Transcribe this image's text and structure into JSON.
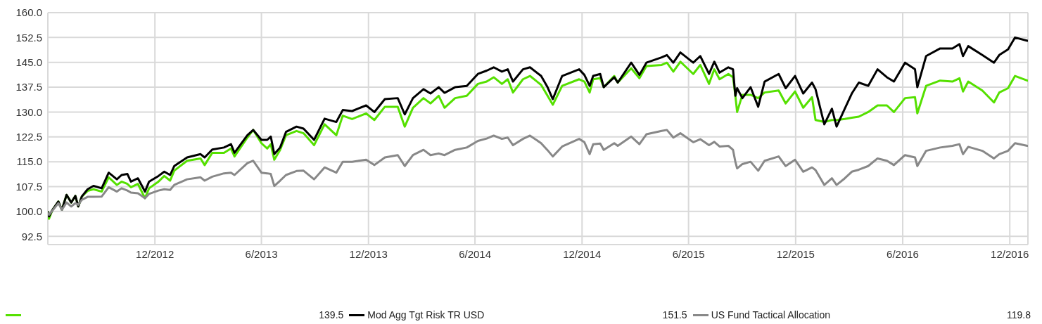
{
  "chart_data": {
    "type": "line",
    "x": [
      "2012-06-01",
      "2012-06-03",
      "2012-06-09",
      "2012-06-19",
      "2012-06-25",
      "2012-07-03",
      "2012-07-11",
      "2012-07-18",
      "2012-07-23",
      "2012-07-29",
      "2012-08-08",
      "2012-08-18",
      "2012-09-01",
      "2012-09-13",
      "2012-09-27",
      "2012-10-05",
      "2012-10-15",
      "2012-10-21",
      "2012-11-02",
      "2012-11-14",
      "2012-11-21",
      "2012-12-07",
      "2012-12-17",
      "2012-12-27",
      "2013-01-03",
      "2013-01-25",
      "2013-02-17",
      "2013-02-24",
      "2013-03-09",
      "2013-03-29",
      "2013-04-10",
      "2013-04-16",
      "2013-05-08",
      "2013-05-18",
      "2013-06-01",
      "2013-06-11",
      "2013-06-17",
      "2013-06-23",
      "2013-07-03",
      "2013-07-13",
      "2013-07-31",
      "2013-08-12",
      "2013-08-30",
      "2013-09-17",
      "2013-10-07",
      "2013-10-18",
      "2013-11-03",
      "2013-11-27",
      "2013-12-11",
      "2013-12-29",
      "2014-01-20",
      "2014-02-01",
      "2014-02-15",
      "2014-03-05",
      "2014-03-17",
      "2014-03-31",
      "2014-04-10",
      "2014-04-28",
      "2014-05-18",
      "2014-06-06",
      "2014-06-21",
      "2014-07-03",
      "2014-07-17",
      "2014-07-27",
      "2014-08-05",
      "2014-08-22",
      "2014-09-03",
      "2014-09-22",
      "2014-10-03",
      "2014-10-12",
      "2014-10-28",
      "2014-11-26",
      "2014-12-05",
      "2014-12-14",
      "2014-12-20",
      "2015-01-01",
      "2015-01-07",
      "2015-01-25",
      "2015-01-31",
      "2015-02-23",
      "2015-03-09",
      "2015-03-21",
      "2015-04-16",
      "2015-04-25",
      "2015-05-06",
      "2015-05-18",
      "2015-06-09",
      "2015-06-21",
      "2015-07-06",
      "2015-07-15",
      "2015-07-24",
      "2015-08-08",
      "2015-08-16",
      "2015-08-20",
      "2015-08-23",
      "2015-09-01",
      "2015-09-15",
      "2015-09-28",
      "2015-10-09",
      "2015-11-02",
      "2015-11-14",
      "2015-11-30",
      "2015-12-14",
      "2015-12-29",
      "2016-01-04",
      "2016-01-19",
      "2016-02-01",
      "2016-02-09",
      "2016-02-23",
      "2016-03-06",
      "2016-03-18",
      "2016-04-03",
      "2016-04-19",
      "2016-05-05",
      "2016-05-17",
      "2016-06-05",
      "2016-06-22",
      "2016-06-26",
      "2016-07-11",
      "2016-08-04",
      "2016-08-25",
      "2016-09-06",
      "2016-09-12",
      "2016-09-21",
      "2016-10-15",
      "2016-11-04",
      "2016-11-13",
      "2016-11-28",
      "2016-12-10",
      "2016-12-31"
    ],
    "series": [
      {
        "color": "#55e000",
        "values": [
          99.8,
          97.8,
          100.5,
          103.0,
          100.5,
          105,
          102.7,
          104.7,
          101.5,
          104.5,
          106.2,
          106.7,
          106,
          110.3,
          108,
          109,
          108.3,
          107.3,
          108.3,
          104,
          107,
          109,
          110.7,
          109.3,
          112.3,
          115.3,
          116,
          114,
          117.7,
          117.7,
          119,
          116.6,
          122.3,
          124.6,
          120.6,
          119,
          120.3,
          115.6,
          118.6,
          123,
          124.3,
          123.6,
          120,
          126.3,
          123,
          128.9,
          127.9,
          129.6,
          127.6,
          131.6,
          131.6,
          125.6,
          131.3,
          134.2,
          132.6,
          134.9,
          131.3,
          134.2,
          134.9,
          138.5,
          139.2,
          140.5,
          138.5,
          139.9,
          135.9,
          139.9,
          140.9,
          138.2,
          134.9,
          132.2,
          137.9,
          139.9,
          139.2,
          135.9,
          139.9,
          140.2,
          137.5,
          140.9,
          138.9,
          143.2,
          140.2,
          143.9,
          144.2,
          144.9,
          142.2,
          145.2,
          141.5,
          144.2,
          138.5,
          142.9,
          139.9,
          141.5,
          140.5,
          134.9,
          130,
          135.2,
          135.2,
          134.2,
          135.9,
          136.5,
          132.6,
          136.2,
          131.3,
          134.5,
          127.6,
          127,
          127.6,
          127.6,
          127.9,
          128.3,
          128.6,
          130,
          132,
          132,
          130,
          134.2,
          134.5,
          129.6,
          137.9,
          139.5,
          139.2,
          140.2,
          136.2,
          139.2,
          136.5,
          132.9,
          135.9,
          137.2,
          140.9,
          139.5
        ]
      },
      {
        "name": "Mod Agg Tgt Risk TR USD",
        "color": "#000000",
        "values": [
          99.8,
          98.5,
          100.5,
          103.0,
          100.5,
          105,
          102.7,
          104.7,
          101.5,
          104.5,
          106.7,
          107.7,
          107,
          111.7,
          109.7,
          111,
          111.3,
          109,
          110,
          106,
          109,
          110.7,
          112,
          111,
          113.7,
          116.3,
          117.3,
          116.3,
          118.7,
          119.3,
          120.3,
          117.7,
          123,
          124.6,
          121.6,
          121.6,
          122.6,
          117.3,
          119.3,
          124,
          125.6,
          125,
          121.6,
          128,
          127,
          130.6,
          130.3,
          132,
          130,
          133.9,
          134.2,
          129.3,
          134.2,
          136.9,
          135.6,
          137.5,
          135.8,
          137.5,
          137.9,
          141.5,
          142.5,
          143.5,
          142.2,
          142.9,
          139.2,
          142.9,
          143.5,
          140.9,
          137.5,
          133.9,
          140.9,
          142.9,
          141.2,
          137.9,
          140.9,
          141.5,
          137.5,
          140.5,
          138.9,
          144.9,
          141.2,
          144.9,
          146.5,
          147.2,
          144.9,
          148,
          144.9,
          146.9,
          141.5,
          145.2,
          141.9,
          143.5,
          142.9,
          134.9,
          137.2,
          134.2,
          137.5,
          131.6,
          139.2,
          141.5,
          137.2,
          140.9,
          135.6,
          138.9,
          136.9,
          126.3,
          131,
          125.6,
          131,
          135.6,
          138.9,
          137.9,
          142.9,
          140.5,
          139.2,
          144.9,
          142.9,
          137.5,
          146.9,
          149.2,
          149.2,
          150.5,
          146.9,
          149.9,
          147.2,
          144.9,
          147.2,
          148.9,
          152.5,
          151.5
        ]
      },
      {
        "name": "US Fund Tactical Allocation",
        "color": "#888888",
        "values": [
          99.5,
          99.0,
          100.3,
          102.5,
          100.5,
          102.7,
          101.5,
          102.5,
          102,
          103.5,
          104.4,
          104.4,
          104.5,
          107.3,
          106,
          107,
          106.3,
          105.7,
          105.5,
          104,
          105.3,
          106.3,
          106.7,
          106.5,
          108,
          109.7,
          110.3,
          109.3,
          110.5,
          111.5,
          111.7,
          111,
          114.6,
          115.3,
          111.7,
          111.5,
          111.3,
          107.7,
          109.3,
          111,
          112.2,
          112.3,
          109.7,
          113.3,
          111.7,
          115,
          115,
          115.6,
          114,
          116.3,
          117,
          113.7,
          117,
          118.6,
          117,
          117.5,
          117,
          118.6,
          119.3,
          121.3,
          122,
          122.9,
          121.9,
          122.3,
          120,
          121.9,
          122.9,
          120.6,
          118.5,
          116.6,
          119.6,
          121.9,
          120.9,
          117.3,
          120.3,
          120.5,
          118.6,
          120.6,
          119.8,
          122.6,
          120.3,
          123.3,
          124.3,
          124.6,
          122.3,
          123.6,
          120.9,
          121.8,
          120,
          121,
          119.6,
          119.8,
          118.6,
          115,
          113,
          114.3,
          115,
          112.3,
          115.3,
          116.6,
          113.7,
          115.6,
          112,
          113.3,
          112.5,
          108,
          110,
          108,
          110,
          112,
          112.6,
          113.7,
          116,
          115.3,
          114,
          117,
          116.3,
          113.7,
          118.3,
          119.3,
          119.8,
          120.3,
          117.3,
          119.5,
          118.3,
          116,
          117.3,
          118.3,
          120.6,
          119.8
        ]
      }
    ],
    "xlim": [
      "2012-06-01",
      "2017-01-01"
    ],
    "xticks": [
      {
        "value": "2012-12-01",
        "label": "12/2012"
      },
      {
        "value": "2013-06-01",
        "label": "6/2013"
      },
      {
        "value": "2013-12-01",
        "label": "12/2013"
      },
      {
        "value": "2014-06-01",
        "label": "6/2014"
      },
      {
        "value": "2014-12-01",
        "label": "12/2014"
      },
      {
        "value": "2015-06-01",
        "label": "6/2015"
      },
      {
        "value": "2015-12-01",
        "label": "12/2015"
      },
      {
        "value": "2016-06-01",
        "label": "6/2016"
      },
      {
        "value": "2016-12-01",
        "label": "12/2016"
      }
    ],
    "ylim": [
      90,
      160
    ],
    "yticks": [
      92.5,
      {
        "value": 100,
        "label": "100.0"
      },
      107.5,
      {
        "value": 115,
        "label": "115.0"
      },
      122.5,
      {
        "value": 130,
        "label": "130.0"
      },
      137.5,
      {
        "value": 145,
        "label": "145.0"
      },
      152.5,
      {
        "value": 160,
        "label": "160.0"
      }
    ],
    "grid": true,
    "legend": "bottom",
    "annotations": [
      "139.5",
      "151.5",
      "119.8"
    ]
  }
}
